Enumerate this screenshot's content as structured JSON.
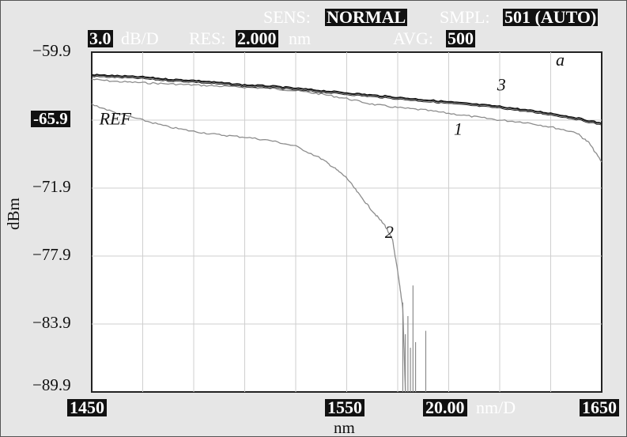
{
  "header": {
    "sens_label": "SENS:",
    "sens_value": "NORMAL",
    "smpl_label": "SMPL:",
    "smpl_value": "501 (AUTO)",
    "scale_value": "3.0",
    "scale_unit": "dB/D",
    "res_label": "RES:",
    "res_value": "2.000",
    "res_unit": "nm",
    "avg_label": "AVG:",
    "avg_value": "500"
  },
  "chart_data": {
    "type": "line",
    "title": "",
    "xlabel": "nm",
    "ylabel": "dBm",
    "xlim": [
      1450,
      1650
    ],
    "ylim": [
      -89.9,
      -59.9
    ],
    "x_ticks": [
      "1450",
      "1550",
      "1650"
    ],
    "y_ticks": [
      "−59.9",
      "-65.9",
      "−71.9",
      "−77.9",
      "−83.9",
      "−89.9"
    ],
    "y_ref_level": -65.9,
    "x_span_value": "20.00",
    "x_span_unit": "nm/D",
    "grid": true,
    "grid_divisions": {
      "x": 10,
      "y": 5
    },
    "series": [
      {
        "label": "1",
        "color": "#8c8c8c",
        "x": [
          1450,
          1460,
          1470,
          1480,
          1490,
          1500,
          1510,
          1520,
          1530,
          1540,
          1550,
          1560,
          1570,
          1580,
          1590,
          1600,
          1610,
          1620,
          1630,
          1640,
          1645,
          1650
        ],
        "y": [
          -62.3,
          -62.5,
          -62.6,
          -62.7,
          -62.8,
          -62.9,
          -63.0,
          -63.1,
          -63.3,
          -63.6,
          -64.0,
          -64.5,
          -64.8,
          -65.0,
          -65.3,
          -65.6,
          -65.9,
          -66.1,
          -66.5,
          -67.0,
          -67.9,
          -69.6
        ]
      },
      {
        "label": "2",
        "color": "#8c8c8c",
        "x": [
          1450,
          1460,
          1470,
          1480,
          1490,
          1500,
          1510,
          1520,
          1530,
          1540,
          1545,
          1550,
          1555,
          1560,
          1565,
          1568,
          1570,
          1572,
          1573
        ],
        "y": [
          -64.5,
          -65.3,
          -65.9,
          -66.5,
          -66.9,
          -67.2,
          -67.4,
          -67.7,
          -68.2,
          -69.3,
          -70.1,
          -71.0,
          -72.5,
          -73.9,
          -75.2,
          -76.5,
          -79.3,
          -82.5,
          -89.9
        ]
      },
      {
        "label": "3",
        "color": "#1a1a1a",
        "x": [
          1450,
          1460,
          1470,
          1480,
          1490,
          1500,
          1510,
          1520,
          1530,
          1540,
          1550,
          1560,
          1570,
          1580,
          1590,
          1600,
          1610,
          1620,
          1630,
          1640,
          1650
        ],
        "y": [
          -61.9,
          -62.0,
          -62.1,
          -62.3,
          -62.4,
          -62.6,
          -62.8,
          -62.9,
          -63.1,
          -63.3,
          -63.5,
          -63.7,
          -63.9,
          -64.1,
          -64.3,
          -64.5,
          -64.7,
          -65.0,
          -65.3,
          -65.7,
          -66.2
        ]
      }
    ],
    "annotations": [
      {
        "text": "a",
        "x": 1632,
        "y": -61.1
      },
      {
        "text": "REF",
        "x": 1453,
        "y": -66.3
      },
      {
        "text": "1",
        "x": 1592,
        "y": -67.2
      },
      {
        "text": "2",
        "x": 1565,
        "y": -76.3
      },
      {
        "text": "3",
        "x": 1609,
        "y": -63.3
      }
    ]
  }
}
